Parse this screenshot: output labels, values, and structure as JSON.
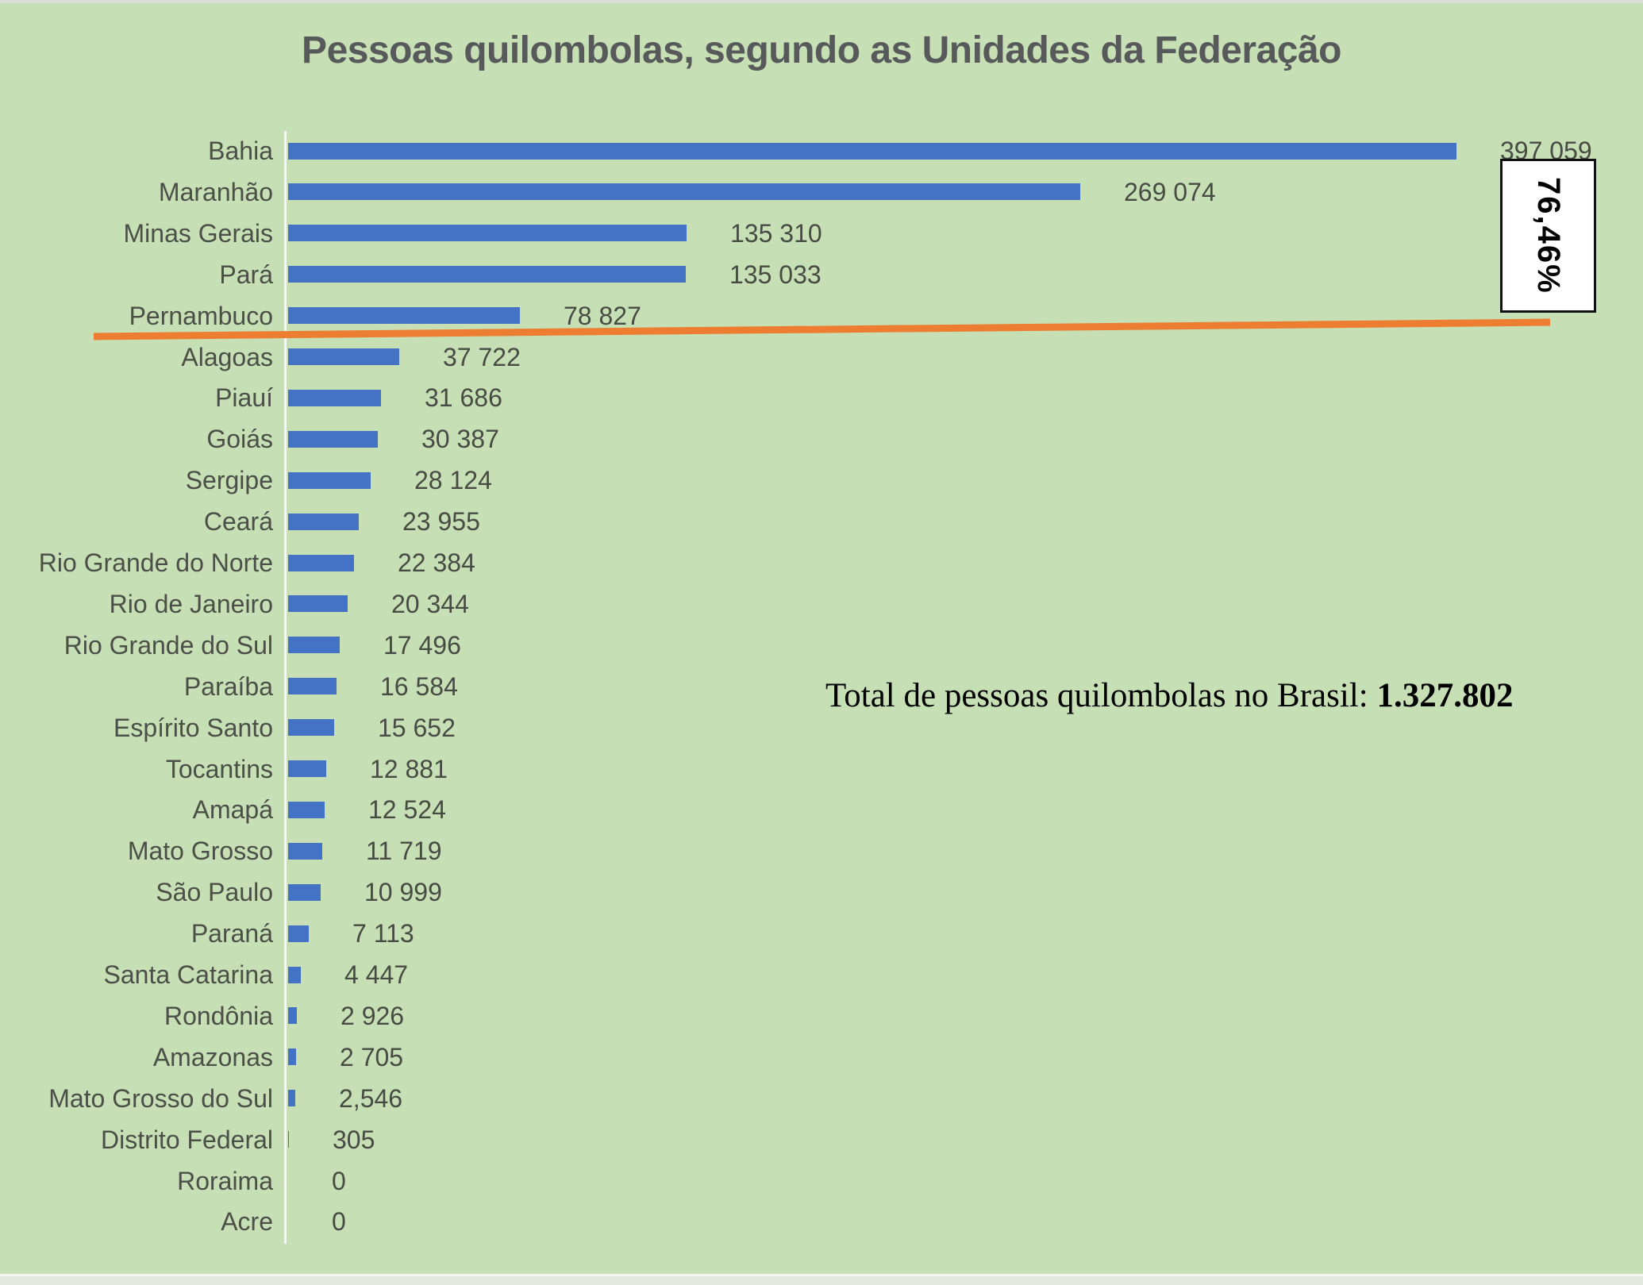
{
  "title": "Pessoas quilombolas, segundo as Unidades da Federação",
  "annotation": {
    "percent_label": "76,46%"
  },
  "total_note": {
    "prefix": "Total de pessoas quilombolas no Brasil: ",
    "value": "1.327.802"
  },
  "colors": {
    "background": "#c6dfb4",
    "bar": "#4472c4",
    "divider_line": "#ed7d31",
    "title_text": "#58595b",
    "label_text": "#4b4f48"
  },
  "chart_data": {
    "type": "bar",
    "orientation": "horizontal",
    "title": "Pessoas quilombolas, segundo as Unidades da Federação",
    "xlabel": "",
    "ylabel": "",
    "xlim": [
      0,
      400000
    ],
    "grid": false,
    "legend": null,
    "categories": [
      "Bahia",
      "Maranhão",
      "Minas Gerais",
      "Pará",
      "Pernambuco",
      "Alagoas",
      "Piauí",
      "Goiás",
      "Sergipe",
      "Ceará",
      "Rio Grande do Norte",
      "Rio de Janeiro",
      "Rio Grande do Sul",
      "Paraíba",
      "Espírito Santo",
      "Tocantins",
      "Amapá",
      "Mato Grosso",
      "São Paulo",
      "Paraná",
      "Santa Catarina",
      "Rondônia",
      "Amazonas",
      "Mato Grosso do Sul",
      "Distrito Federal",
      "Roraima",
      "Acre"
    ],
    "values": [
      397059,
      269074,
      135310,
      135033,
      78827,
      37722,
      31686,
      30387,
      28124,
      23955,
      22384,
      20344,
      17496,
      16584,
      15652,
      12881,
      12524,
      11719,
      10999,
      7113,
      4447,
      2926,
      2705,
      2546,
      305,
      0,
      0
    ],
    "value_labels": [
      "397 059",
      "269 074",
      "135 310",
      "135 033",
      "78 827",
      "37 722",
      "31 686",
      "30 387",
      "28 124",
      "23 955",
      "22 384",
      "20 344",
      "17 496",
      "16 584",
      "15 652",
      "12 881",
      "12 524",
      "11 719",
      "10 999",
      "7 113",
      "4 447",
      "2 926",
      "2 705",
      "2,546",
      "305",
      "0",
      "0"
    ],
    "divider_after_index": 4,
    "top5_share_label": "76,46%",
    "total_label": "1.327.802"
  }
}
